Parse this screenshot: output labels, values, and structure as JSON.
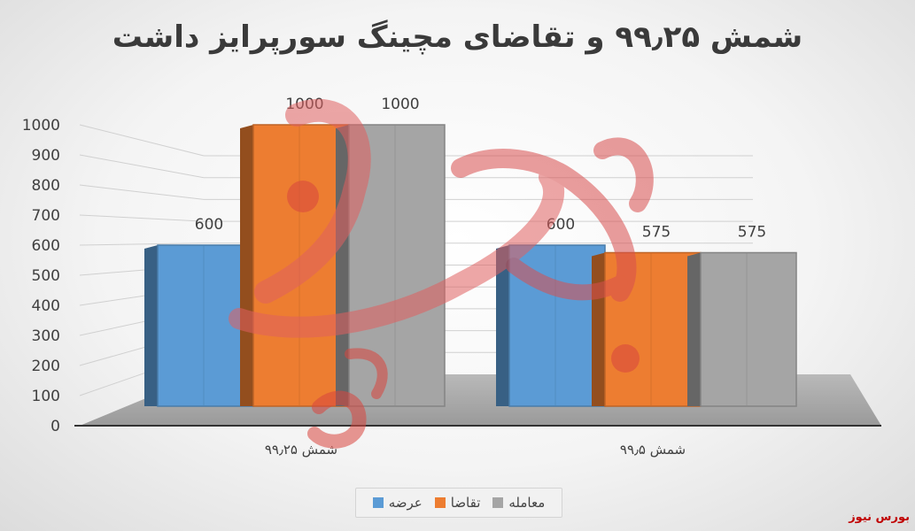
{
  "chart_data": {
    "type": "bar",
    "title": "شمش ۹۹٫۲۵ و تقاضای مچینگ سورپرایز داشت",
    "categories": [
      "شمش ۹۹٫۲۵",
      "شمش ۹۹٫۵"
    ],
    "series": [
      {
        "name": "عرضه",
        "values": [
          600,
          600
        ],
        "color": "#5b9bd5"
      },
      {
        "name": "تقاضا",
        "values": [
          1000,
          575
        ],
        "color": "#ed7d31"
      },
      {
        "name": "معامله",
        "values": [
          1000,
          575
        ],
        "color": "#a5a5a5"
      }
    ],
    "ylim": [
      0,
      1000
    ],
    "yticks": [
      0,
      100,
      200,
      300,
      400,
      500,
      600,
      700,
      800,
      900,
      1000
    ],
    "grid": true,
    "legend_position": "bottom",
    "style": "3d-clustered-column"
  },
  "watermark": {
    "logo_text": "بورس نیوز",
    "corner_text": "بورس نیوز"
  }
}
